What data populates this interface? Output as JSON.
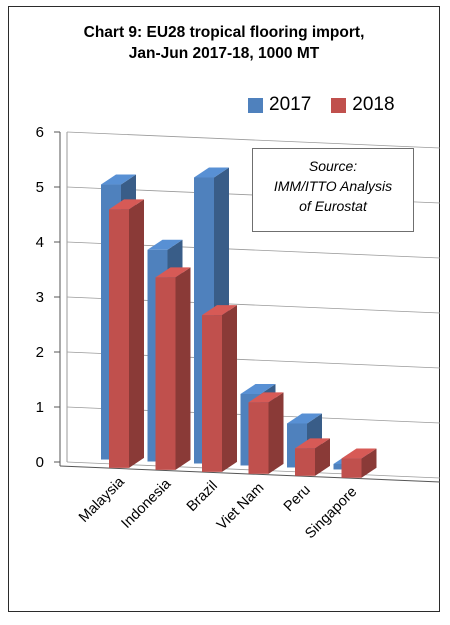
{
  "title_lines": [
    "Chart 9: EU28 tropical flooring import,",
    "Jan-Jun 2017-18, 1000 MT"
  ],
  "source_lines": [
    "Source:",
    "IMM/ITTO Analysis",
    "of Eurostat"
  ],
  "colors": {
    "series_2017": "#4f81bd",
    "series_2018": "#c0504d",
    "frame": "#2b2b2b",
    "grid": "#9a9a9a"
  },
  "chart_data": {
    "type": "bar",
    "title": "Chart 9: EU28 tropical flooring import, Jan-Jun 2017-18, 1000 MT",
    "categories": [
      "Malaysia",
      "Indonesia",
      "Brazil",
      "Viet Nam",
      "Peru",
      "Singapore"
    ],
    "series": [
      {
        "name": "2017",
        "values": [
          5.0,
          3.85,
          5.2,
          1.3,
          0.8,
          0.1
        ]
      },
      {
        "name": "2018",
        "values": [
          4.7,
          3.5,
          2.85,
          1.3,
          0.5,
          0.35
        ]
      }
    ],
    "y_ticks": [
      "0",
      "1",
      "2",
      "3",
      "4",
      "5",
      "6"
    ],
    "ylim": [
      0,
      6
    ],
    "grid": true,
    "legend_position": "top-right",
    "xlabel": "",
    "ylabel": ""
  }
}
